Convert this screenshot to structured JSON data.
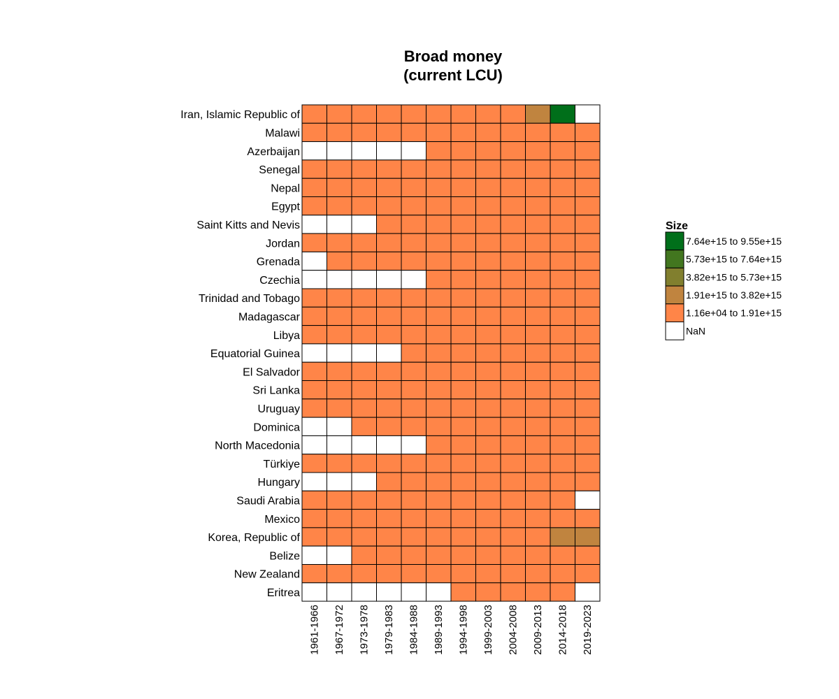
{
  "chart_data": {
    "type": "heatmap",
    "title_lines": [
      "Broad money",
      "(current LCU)"
    ],
    "rows": [
      "Iran, Islamic Republic of",
      "Malawi",
      "Azerbaijan",
      "Senegal",
      "Nepal",
      "Egypt",
      "Saint Kitts and Nevis",
      "Jordan",
      "Grenada",
      "Czechia",
      "Trinidad and Tobago",
      "Madagascar",
      "Libya",
      "Equatorial Guinea",
      "El Salvador",
      "Sri Lanka",
      "Uruguay",
      "Dominica",
      "North Macedonia",
      "Türkiye",
      "Hungary",
      "Saudi Arabia",
      "Mexico",
      "Korea, Republic of",
      "Belize",
      "New Zealand",
      "Eritrea"
    ],
    "columns": [
      "1961-1966",
      "1967-1972",
      "1973-1978",
      "1979-1983",
      "1984-1988",
      "1989-1993",
      "1994-1998",
      "1999-2003",
      "2004-2008",
      "2009-2013",
      "2014-2018",
      "2019-2023"
    ],
    "bin_index_note": "cells give the legend bin index (0 = lowest bin ... 4 = highest bin), -1 = NaN",
    "cells": [
      [
        0,
        0,
        0,
        0,
        0,
        0,
        0,
        0,
        0,
        1,
        4,
        -1
      ],
      [
        0,
        0,
        0,
        0,
        0,
        0,
        0,
        0,
        0,
        0,
        0,
        0
      ],
      [
        -1,
        -1,
        -1,
        -1,
        -1,
        0,
        0,
        0,
        0,
        0,
        0,
        0
      ],
      [
        0,
        0,
        0,
        0,
        0,
        0,
        0,
        0,
        0,
        0,
        0,
        0
      ],
      [
        0,
        0,
        0,
        0,
        0,
        0,
        0,
        0,
        0,
        0,
        0,
        0
      ],
      [
        0,
        0,
        0,
        0,
        0,
        0,
        0,
        0,
        0,
        0,
        0,
        0
      ],
      [
        -1,
        -1,
        -1,
        0,
        0,
        0,
        0,
        0,
        0,
        0,
        0,
        0
      ],
      [
        0,
        0,
        0,
        0,
        0,
        0,
        0,
        0,
        0,
        0,
        0,
        0
      ],
      [
        -1,
        0,
        0,
        0,
        0,
        0,
        0,
        0,
        0,
        0,
        0,
        0
      ],
      [
        -1,
        -1,
        -1,
        -1,
        -1,
        0,
        0,
        0,
        0,
        0,
        0,
        0
      ],
      [
        0,
        0,
        0,
        0,
        0,
        0,
        0,
        0,
        0,
        0,
        0,
        0
      ],
      [
        0,
        0,
        0,
        0,
        0,
        0,
        0,
        0,
        0,
        0,
        0,
        0
      ],
      [
        0,
        0,
        0,
        0,
        0,
        0,
        0,
        0,
        0,
        0,
        0,
        0
      ],
      [
        -1,
        -1,
        -1,
        -1,
        0,
        0,
        0,
        0,
        0,
        0,
        0,
        0
      ],
      [
        0,
        0,
        0,
        0,
        0,
        0,
        0,
        0,
        0,
        0,
        0,
        0
      ],
      [
        0,
        0,
        0,
        0,
        0,
        0,
        0,
        0,
        0,
        0,
        0,
        0
      ],
      [
        0,
        0,
        0,
        0,
        0,
        0,
        0,
        0,
        0,
        0,
        0,
        0
      ],
      [
        -1,
        -1,
        0,
        0,
        0,
        0,
        0,
        0,
        0,
        0,
        0,
        0
      ],
      [
        -1,
        -1,
        -1,
        -1,
        -1,
        0,
        0,
        0,
        0,
        0,
        0,
        0
      ],
      [
        0,
        0,
        0,
        0,
        0,
        0,
        0,
        0,
        0,
        0,
        0,
        0
      ],
      [
        -1,
        -1,
        -1,
        0,
        0,
        0,
        0,
        0,
        0,
        0,
        0,
        0
      ],
      [
        0,
        0,
        0,
        0,
        0,
        0,
        0,
        0,
        0,
        0,
        0,
        -1
      ],
      [
        0,
        0,
        0,
        0,
        0,
        0,
        0,
        0,
        0,
        0,
        0,
        0
      ],
      [
        0,
        0,
        0,
        0,
        0,
        0,
        0,
        0,
        0,
        0,
        1,
        1
      ],
      [
        -1,
        -1,
        0,
        0,
        0,
        0,
        0,
        0,
        0,
        0,
        0,
        0
      ],
      [
        0,
        0,
        0,
        0,
        0,
        0,
        0,
        0,
        0,
        0,
        0,
        0
      ],
      [
        -1,
        -1,
        -1,
        -1,
        -1,
        -1,
        0,
        0,
        0,
        0,
        0,
        -1
      ]
    ],
    "legend": {
      "title": "Size",
      "placement": "right",
      "bins": [
        {
          "label": "1.16e+04 to 1.91e+15",
          "color": "#ff8548"
        },
        {
          "label": "1.91e+15 to 3.82e+15",
          "color": "#c0843f"
        },
        {
          "label": "3.82e+15 to 5.73e+15",
          "color": "#817f2e"
        },
        {
          "label": "5.73e+15 to 7.64e+15",
          "color": "#42761f"
        },
        {
          "label": "7.64e+15 to 9.55e+15",
          "color": "#006f1a"
        }
      ],
      "nan": {
        "label": "NaN",
        "color": "#ffffff"
      }
    }
  }
}
